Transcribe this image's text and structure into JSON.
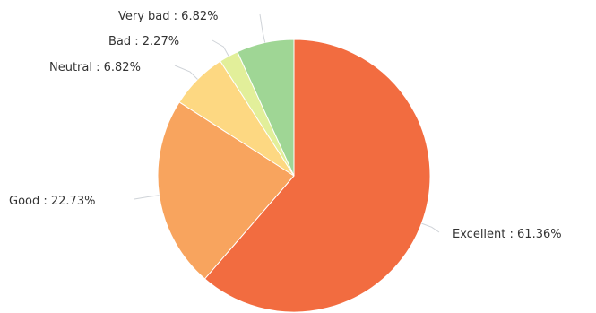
{
  "chart_data": {
    "type": "pie",
    "title": "",
    "slices": [
      {
        "label": "Excellent",
        "value": 61.36,
        "display": "Excellent : 61.36%",
        "color": "#f26c40"
      },
      {
        "label": "Good",
        "value": 22.73,
        "display": "Good : 22.73%",
        "color": "#f8a45e"
      },
      {
        "label": "Neutral",
        "value": 6.82,
        "display": "Neutral : 6.82%",
        "color": "#fdd882"
      },
      {
        "label": "Bad",
        "value": 2.27,
        "display": "Bad : 2.27%",
        "color": "#e2ef9a"
      },
      {
        "label": "Very bad",
        "value": 6.82,
        "display": "Very bad : 6.82%",
        "color": "#9fd695"
      }
    ],
    "start_angle_deg": 0,
    "direction": "clockwise"
  }
}
